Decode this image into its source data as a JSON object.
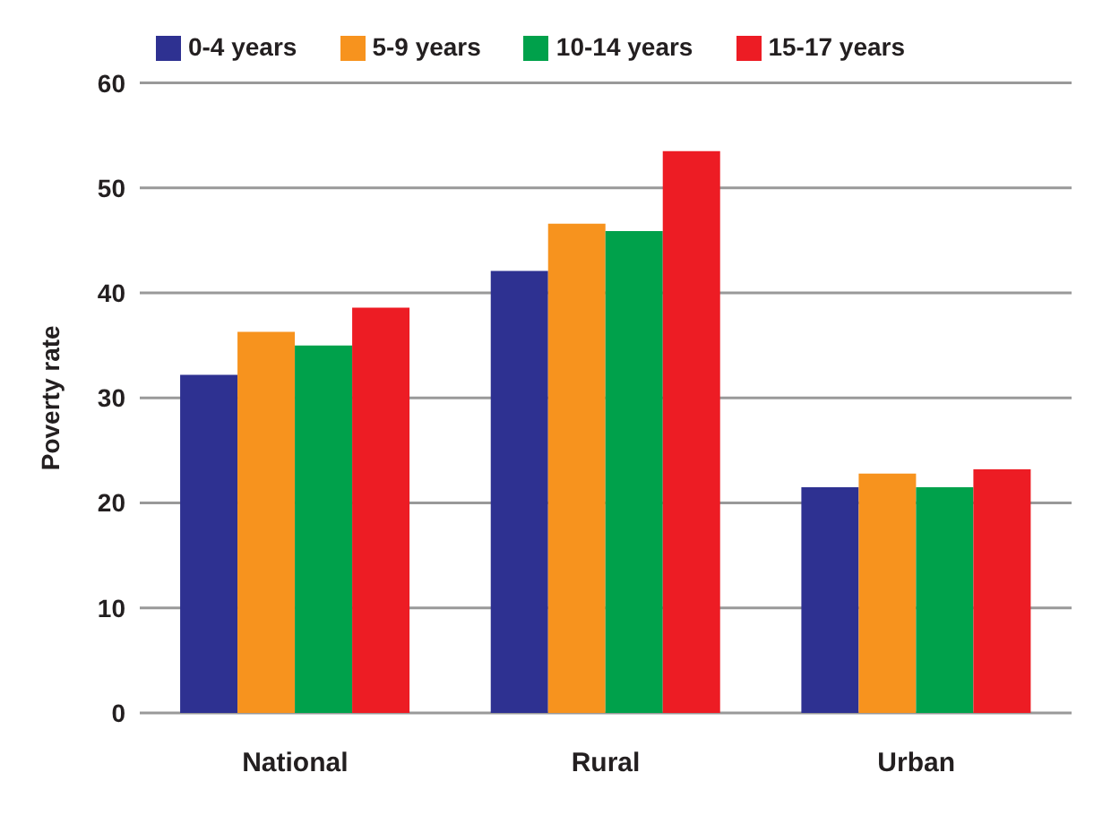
{
  "chart_data": {
    "type": "bar",
    "ylabel": "Poverty rate",
    "categories": [
      "National",
      "Rural",
      "Urban"
    ],
    "series": [
      {
        "name": "0-4 years",
        "color": "#2e3191",
        "values": [
          32.2,
          42.1,
          21.5
        ]
      },
      {
        "name": "5-9 years",
        "color": "#f7931e",
        "values": [
          36.3,
          46.6,
          22.8
        ]
      },
      {
        "name": "10-14 years",
        "color": "#00a14b",
        "values": [
          35.0,
          45.9,
          21.5
        ]
      },
      {
        "name": "15-17 years",
        "color": "#ed1c24",
        "values": [
          38.6,
          53.5,
          23.2
        ]
      }
    ],
    "ylim": [
      0,
      60
    ],
    "yticks": [
      0,
      10,
      20,
      30,
      40,
      50,
      60
    ],
    "grid": "y",
    "legend": "top"
  }
}
